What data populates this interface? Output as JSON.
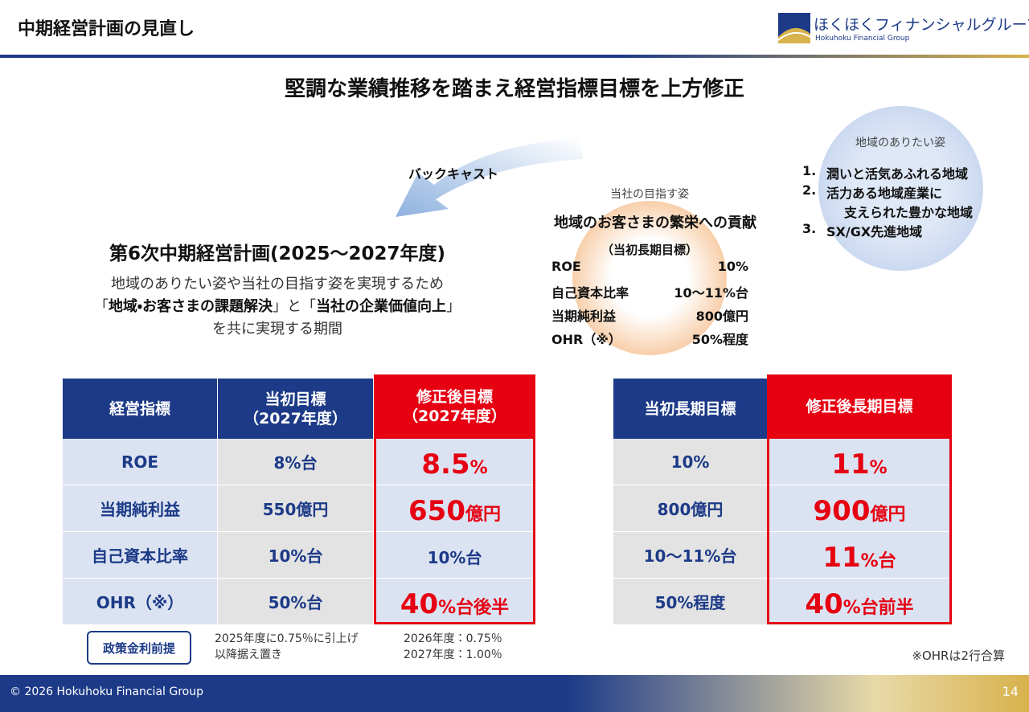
{
  "header": {
    "title": "中期経営計画の見直し",
    "logo_ja": "ほくほくフィナンシャルグループ",
    "logo_en": "Hokuhoku Financial Group"
  },
  "headline": "堅調な業績推移を踏まえ経営指標目標を上方修正",
  "backcast": "バックキャスト",
  "plan": {
    "title": "第6次中期経営計画(2025～2027年度)",
    "line1": "地域のありたい姿や当社の目指す姿を実現するため",
    "line2": [
      "「",
      "地域・お客さまの課題解決",
      "」と「",
      "当社の企業価値向上",
      "」"
    ],
    "line3": "を共に実現する期間"
  },
  "company_goal": {
    "label": "当社の目指す姿",
    "title": "地域のお客さまの繁栄への貢献",
    "sub": "（当初長期目標）",
    "rows": [
      [
        "ROE",
        "10%"
      ],
      [
        "自己資本比率",
        "10～11%台"
      ],
      [
        "当期純利益",
        "800億円"
      ],
      [
        "OHR（※）",
        "50%程度"
      ]
    ]
  },
  "region_goal": {
    "label": "地域のありたい姿",
    "items": [
      {
        "num": "1.",
        "lines": [
          "潤いと活気あふれる地域"
        ]
      },
      {
        "num": "2.",
        "lines": [
          "活力ある地域産業に",
          "支えられた豊かな地域"
        ]
      },
      {
        "num": "3.",
        "lines": [
          "SX/GX先進地域"
        ]
      }
    ]
  },
  "table1": {
    "headers": [
      [
        "経営指標"
      ],
      [
        "当初目標",
        "（2027年度）"
      ],
      [
        "修正後目標",
        "（2027年度）"
      ]
    ],
    "rows": [
      {
        "name": "ROE",
        "initial": "8%台",
        "revised": {
          "main": "8.5",
          "unit": "%"
        }
      },
      {
        "name": "当期純利益",
        "initial": "550億円",
        "revised": {
          "main": "650",
          "unit": "億円"
        }
      },
      {
        "name": "自己資本比率",
        "initial": "10%台",
        "revised": {
          "main": "10%台"
        }
      },
      {
        "name": "OHR（※）",
        "initial": "50%台",
        "revised": {
          "main": "40",
          "unit": "%台後半"
        }
      }
    ]
  },
  "table2": {
    "headers": [
      [
        "当初長期目標"
      ],
      [
        "修正後長期目標"
      ]
    ],
    "rows": [
      {
        "initial": "10%",
        "revised": {
          "main": "11",
          "unit": "%"
        }
      },
      {
        "initial": "800億円",
        "revised": {
          "main": "900",
          "unit": "億円"
        }
      },
      {
        "initial": "10～11%台",
        "revised": {
          "main": "11",
          "unit": "%台"
        }
      },
      {
        "initial": "50%程度",
        "revised": {
          "main": "40",
          "unit": "%台前半"
        }
      }
    ]
  },
  "policy": {
    "label": "政策金利前提",
    "left": [
      "2025年度に0.75％に引上げ",
      "以降据え置き"
    ],
    "right": [
      "2026年度：0.75％",
      "2027年度：1.00％"
    ]
  },
  "note": "※OHRは2行合算",
  "footer": {
    "copyright": "© 2026 Hokuhoku Financial Group",
    "page": 14
  }
}
